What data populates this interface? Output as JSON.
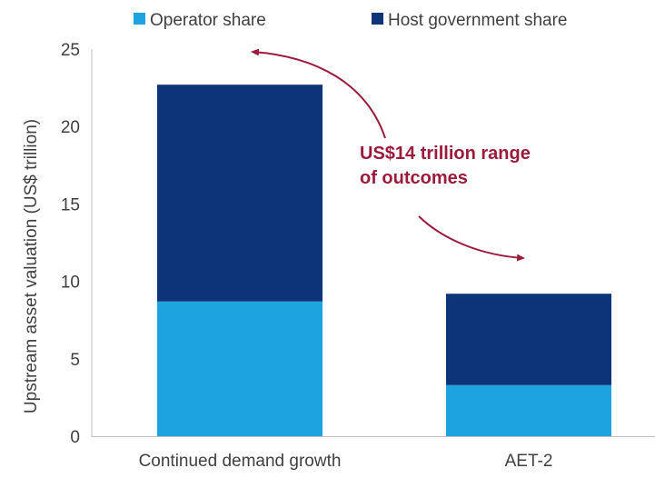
{
  "chart_data": {
    "type": "bar",
    "stacked": true,
    "categories": [
      "Continued demand growth",
      "AET-2"
    ],
    "series": [
      {
        "name": "Operator share",
        "values": [
          8.7,
          3.3
        ],
        "color": "#1ca3e0"
      },
      {
        "name": "Host government share",
        "values": [
          14.0,
          5.9
        ],
        "color": "#0d3478"
      }
    ],
    "title": "",
    "xlabel": "",
    "ylabel": "Upstream asset valuation (US$ trillion)",
    "ylim": [
      0,
      25
    ],
    "yticks": [
      0,
      5,
      10,
      15,
      20,
      25
    ],
    "grid": false,
    "legend_position": "top",
    "annotation": {
      "lines": [
        "US$14 trillion range",
        "of outcomes"
      ],
      "color": "#9b1b3c"
    }
  }
}
